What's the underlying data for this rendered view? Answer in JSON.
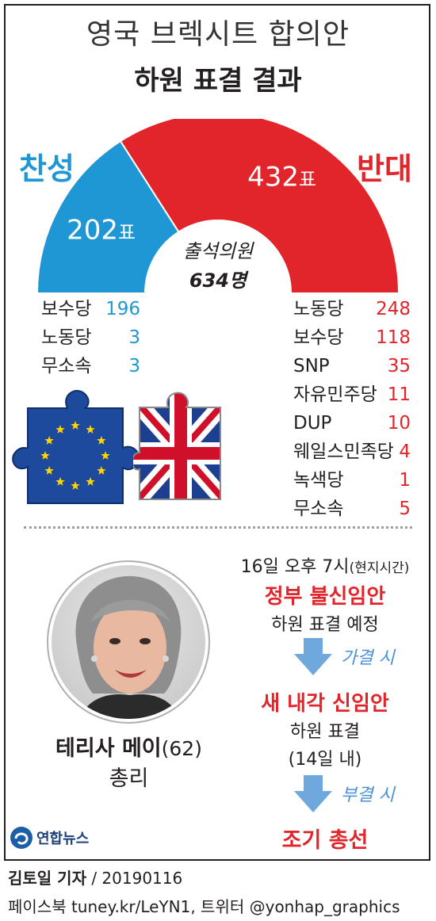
{
  "header": {
    "title": "영국 브렉시트 합의안",
    "subtitle": "하원 표결 결과"
  },
  "chart_data": {
    "type": "pie",
    "style": "semicircle-donut",
    "title": "하원 표결 결과",
    "center_label": "출석의원",
    "center_value": "634명",
    "slices": [
      {
        "name": "찬성",
        "value": 202,
        "label": "202",
        "unit": "표",
        "color": "#1f97d4"
      },
      {
        "name": "반대",
        "value": 432,
        "label": "432",
        "unit": "표",
        "color": "#e2252b"
      }
    ],
    "breakdown": {
      "yes": [
        {
          "party": "보수당",
          "votes": 196
        },
        {
          "party": "노동당",
          "votes": 3
        },
        {
          "party": "무소속",
          "votes": 3
        }
      ],
      "no": [
        {
          "party": "노동당",
          "votes": 248
        },
        {
          "party": "보수당",
          "votes": 118
        },
        {
          "party": "SNP",
          "votes": 35
        },
        {
          "party": "자유민주당",
          "votes": 11
        },
        {
          "party": "DUP",
          "votes": 10
        },
        {
          "party": "웨일스민족당",
          "votes": 4
        },
        {
          "party": "녹색당",
          "votes": 1
        },
        {
          "party": "무소속",
          "votes": 5
        }
      ]
    }
  },
  "labels": {
    "yes": "찬성",
    "no": "반대"
  },
  "flow": {
    "step1_time": "16일 오후 7시",
    "step1_time_note": "(현지시간)",
    "step1_title": "정부 불신임안",
    "step1_desc": "하원 표결 예정",
    "arrow1_label": "가결 시",
    "step2_title": "새 내각 신임안",
    "step2_desc": "하원 표결",
    "step2_note": "(14일 내)",
    "arrow2_label": "부결 시",
    "step3_title": "조기 총선"
  },
  "person": {
    "name": "테리사 메이",
    "age": "(62)",
    "role": "총리"
  },
  "brand": {
    "logo_text": "연합뉴스"
  },
  "footer": {
    "reporter": "김토일 기자",
    "date": " / 20190116",
    "social": "페이스북 tuney.kr/LeYN1, 트위터 @yonhap_graphics"
  },
  "colors": {
    "yes": "#1f97d4",
    "no": "#e2252b",
    "eu": "#1d4a9c",
    "uk_red": "#d0102a",
    "arrow": "#6fa8dc"
  }
}
